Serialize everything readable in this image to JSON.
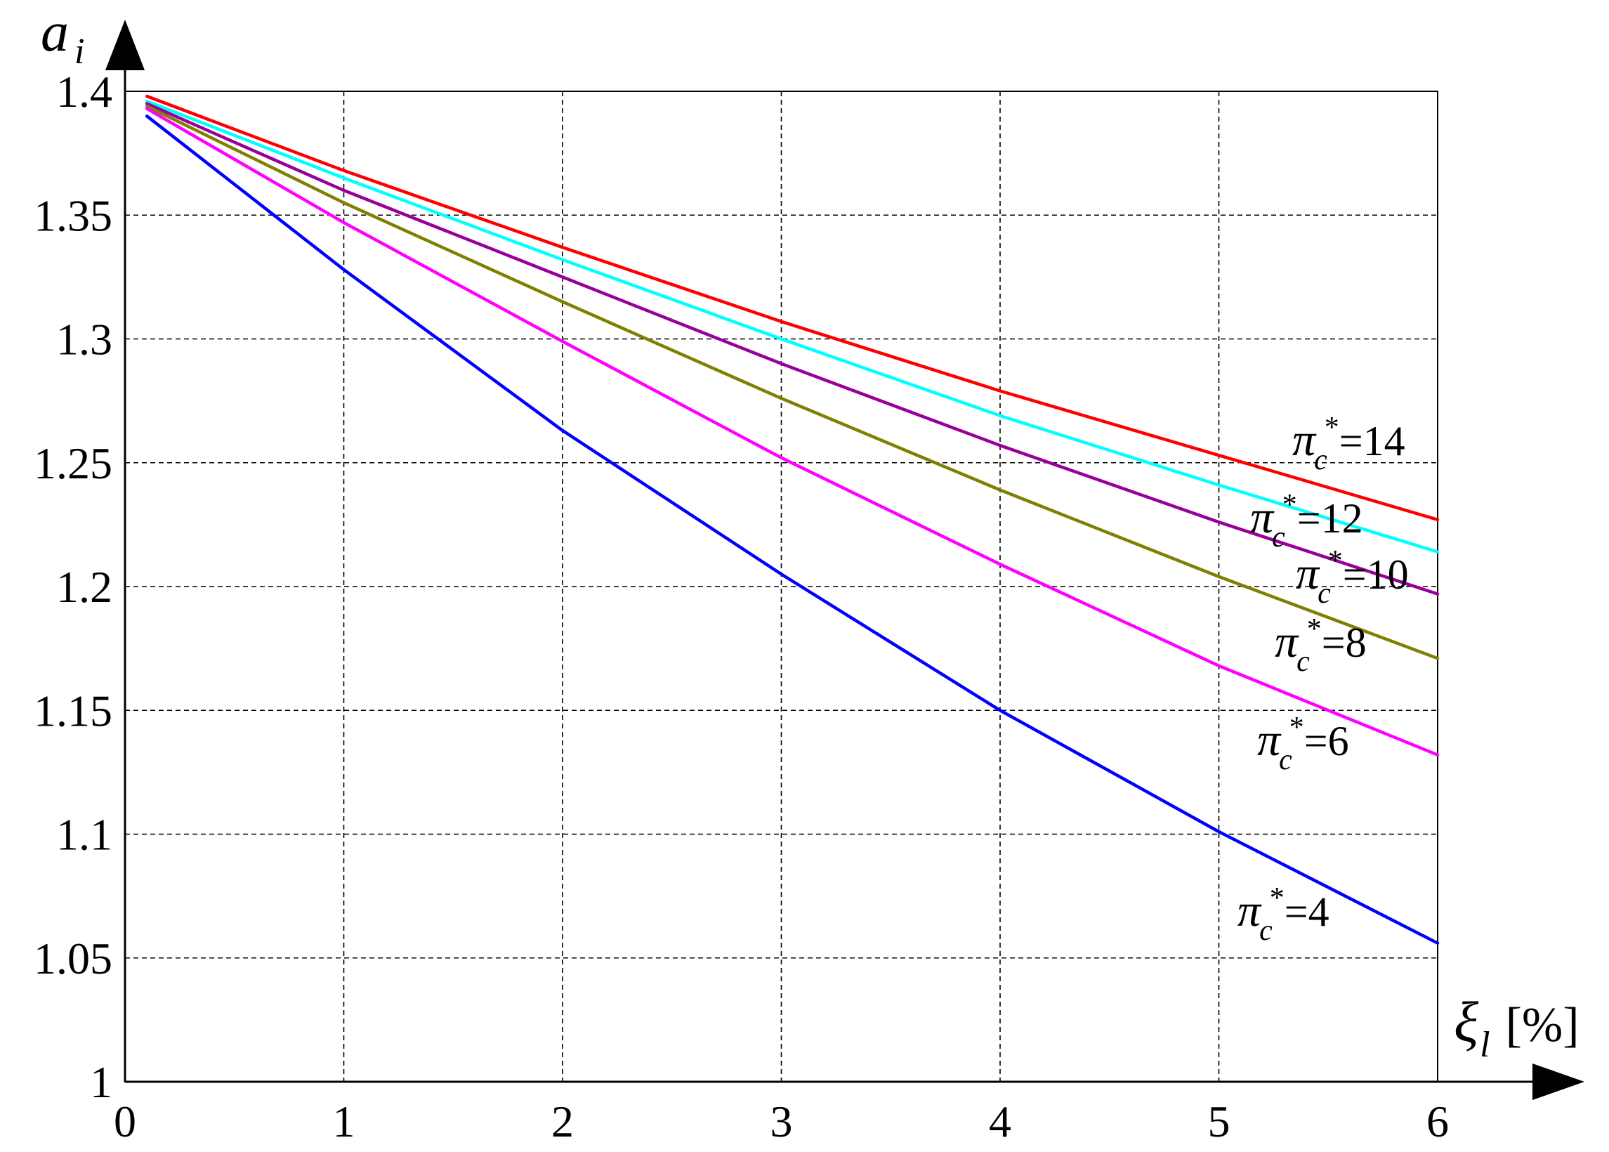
{
  "chart_data": {
    "type": "line",
    "title": "",
    "xlabel": {
      "symbol": "ξ",
      "subscript": "l",
      "unit": "[%]"
    },
    "ylabel": {
      "symbol": "a",
      "subscript": "i"
    },
    "xlim": [
      0,
      6
    ],
    "ylim": [
      1,
      1.4
    ],
    "x_ticks": [
      "0",
      "1",
      "2",
      "3",
      "4",
      "5",
      "6"
    ],
    "y_ticks": [
      "1",
      "1.05",
      "1.1",
      "1.15",
      "1.2",
      "1.25",
      "1.3",
      "1.35",
      "1.4"
    ],
    "x_tick_values": [
      0,
      1,
      2,
      3,
      4,
      5,
      6
    ],
    "y_tick_values": [
      1,
      1.05,
      1.1,
      1.15,
      1.2,
      1.25,
      1.3,
      1.35,
      1.4
    ],
    "grid": true,
    "grid_style": "dashed",
    "series": [
      {
        "label": {
          "symbol": "π",
          "sub": "c",
          "sup": "*",
          "eq": "=14"
        },
        "color": "#ff0000",
        "x": [
          0.1,
          1,
          2,
          3,
          4,
          5,
          6
        ],
        "y": [
          1.398,
          1.368,
          1.337,
          1.307,
          1.279,
          1.253,
          1.227
        ]
      },
      {
        "label": {
          "symbol": "π",
          "sub": "c",
          "sup": "*",
          "eq": "=12"
        },
        "color": "#00ffff",
        "x": [
          0.1,
          1,
          2,
          3,
          4,
          5,
          6
        ],
        "y": [
          1.396,
          1.365,
          1.332,
          1.3,
          1.269,
          1.241,
          1.214
        ]
      },
      {
        "label": {
          "symbol": "π",
          "sub": "c",
          "sup": "*",
          "eq": "=10"
        },
        "color": "#990099",
        "x": [
          0.1,
          1,
          2,
          3,
          4,
          5,
          6
        ],
        "y": [
          1.395,
          1.36,
          1.325,
          1.29,
          1.257,
          1.226,
          1.197
        ]
      },
      {
        "label": {
          "symbol": "π",
          "sub": "c",
          "sup": "*",
          "eq": "=8"
        },
        "color": "#808000",
        "x": [
          0.1,
          1,
          2,
          3,
          4,
          5,
          6
        ],
        "y": [
          1.394,
          1.355,
          1.315,
          1.276,
          1.239,
          1.204,
          1.171
        ]
      },
      {
        "label": {
          "symbol": "π",
          "sub": "c",
          "sup": "*",
          "eq": "=6"
        },
        "color": "#ff00ff",
        "x": [
          0.1,
          1,
          2,
          3,
          4,
          5,
          6
        ],
        "y": [
          1.393,
          1.347,
          1.299,
          1.252,
          1.209,
          1.168,
          1.132
        ]
      },
      {
        "label": {
          "symbol": "π",
          "sub": "c",
          "sup": "*",
          "eq": "=4"
        },
        "color": "#0000ff",
        "x": [
          0.1,
          1,
          2,
          3,
          4,
          5,
          6
        ],
        "y": [
          1.39,
          1.328,
          1.263,
          1.205,
          1.15,
          1.101,
          1.056
        ]
      }
    ]
  }
}
